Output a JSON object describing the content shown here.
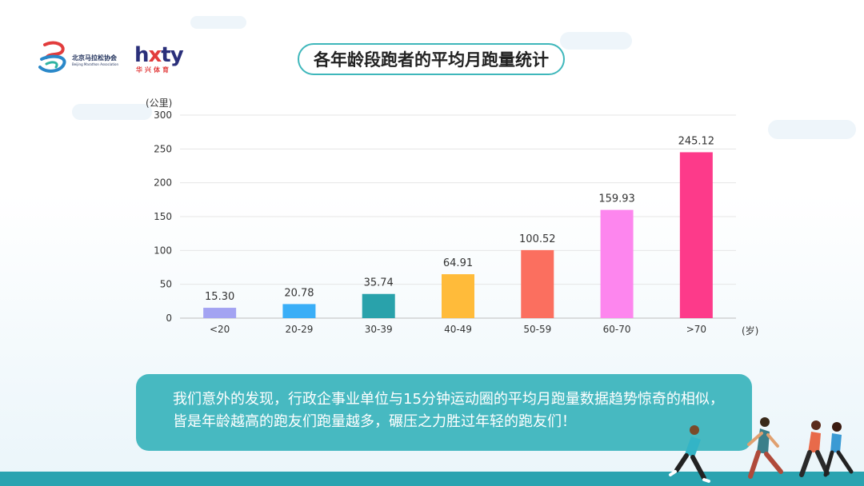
{
  "logos": {
    "association_name": "北京马拉松协会",
    "association_english": "Beijing Marathon Association",
    "brand_word_left": "h",
    "brand_word_x": "x",
    "brand_word_right": "ty",
    "brand_sub": "华兴体育"
  },
  "title": "各年龄段跑者的平均月跑量统计",
  "chart_data": {
    "type": "bar",
    "categories": [
      "<20",
      "20-29",
      "30-39",
      "40-49",
      "50-59",
      "60-70",
      ">70"
    ],
    "values": [
      15.3,
      20.78,
      35.74,
      64.91,
      100.52,
      159.93,
      245.12
    ],
    "value_labels": [
      "15.30",
      "20.78",
      "35.74",
      "64.91",
      "100.52",
      "159.93",
      "245.12"
    ],
    "colors": [
      "#a3a3f2",
      "#3aaef7",
      "#29a2ab",
      "#ffbb3a",
      "#fb6f5f",
      "#fd86ee",
      "#fd3a8a"
    ],
    "ylabel": "(公里)",
    "xlabel": "(岁)",
    "ylim": [
      0,
      300
    ],
    "yticks": [
      0,
      50,
      100,
      150,
      200,
      250,
      300
    ],
    "grid": true
  },
  "caption": "我们意外的发现，行政企事业单位与15分钟运动圈的平均月跑量数据趋势惊奇的相似，皆是年龄越高的跑友们跑量越多，碾压之力胜过年轻的跑友们！"
}
